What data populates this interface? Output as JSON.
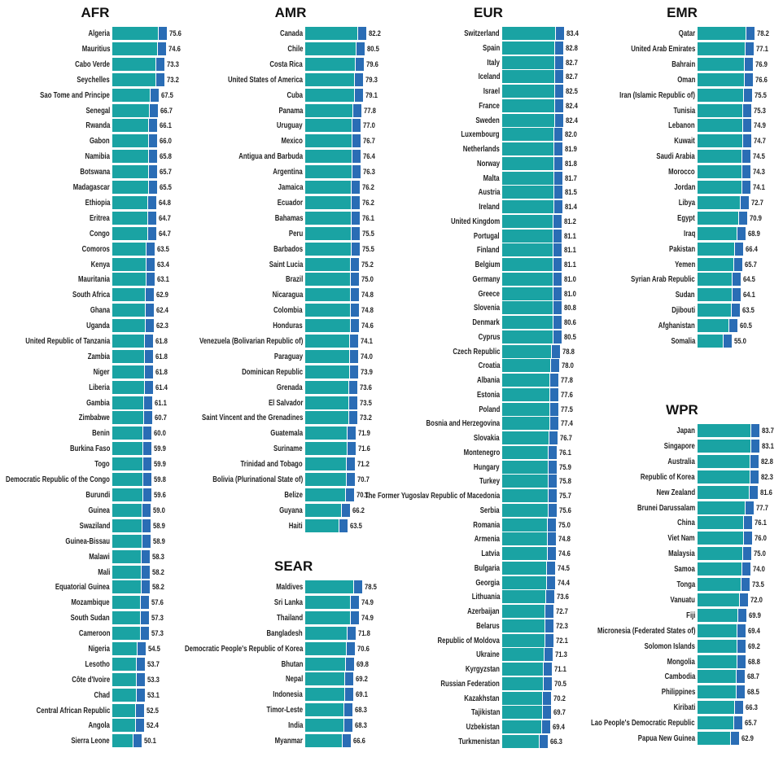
{
  "colors": {
    "bar_main": "#1aa3a3",
    "bar_accent": "#2a6db5",
    "bar_gap": "#ffffff"
  },
  "chart_data": [
    {
      "type": "bar",
      "title": "AFR",
      "categories": [
        "Algeria",
        "Mauritius",
        "Cabo Verde",
        "Seychelles",
        "Sao Tome and Principe",
        "Senegal",
        "Rwanda",
        "Gabon",
        "Namibia",
        "Botswana",
        "Madagascar",
        "Ethiopia",
        "Eritrea",
        "Congo",
        "Comoros",
        "Kenya",
        "Mauritania",
        "South Africa",
        "Ghana",
        "Uganda",
        "United Republic of Tanzania",
        "Zambia",
        "Niger",
        "Liberia",
        "Gambia",
        "Zimbabwe",
        "Benin",
        "Burkina Faso",
        "Togo",
        "Democratic Republic of the Congo",
        "Burundi",
        "Guinea",
        "Swaziland",
        "Guinea-Bissau",
        "Malawi",
        "Mali",
        "Equatorial Guinea",
        "Mozambique",
        "South Sudan",
        "Cameroon",
        "Nigeria",
        "Lesotho",
        "Côte d'Ivoire",
        "Chad",
        "Central African Republic",
        "Angola",
        "Sierra Leone"
      ],
      "values": [
        "75.6",
        "74.6",
        "73.3",
        "73.2",
        "67.5",
        "66.7",
        "66.1",
        "66.0",
        "65.8",
        "65.7",
        "65.5",
        "64.8",
        "64.7",
        "64.7",
        "63.5",
        "63.4",
        "63.1",
        "62.9",
        "62.4",
        "62.3",
        "61.8",
        "61.8",
        "61.8",
        "61.4",
        "61.1",
        "60.7",
        "60.0",
        "59.9",
        "59.9",
        "59.8",
        "59.6",
        "59.0",
        "58.9",
        "58.9",
        "58.3",
        "58.2",
        "58.2",
        "57.6",
        "57.3",
        "57.3",
        "54.5",
        "53.7",
        "53.3",
        "53.1",
        "52.5",
        "52.4",
        "50.1"
      ]
    },
    {
      "type": "bar",
      "title": "AMR",
      "categories": [
        "Canada",
        "Chile",
        "Costa Rica",
        "United States of America",
        "Cuba",
        "Panama",
        "Uruguay",
        "Mexico",
        "Antigua and Barbuda",
        "Argentina",
        "Jamaica",
        "Ecuador",
        "Bahamas",
        "Peru",
        "Barbados",
        "Saint Lucia",
        "Brazil",
        "Nicaragua",
        "Colombia",
        "Honduras",
        "Venezuela (Bolivarian Republic of)",
        "Paraguay",
        "Dominican Republic",
        "Grenada",
        "El Salvador",
        "Saint Vincent and the Grenadines",
        "Guatemala",
        "Suriname",
        "Trinidad and Tobago",
        "Bolivia (Plurinational State of)",
        "Belize",
        "Guyana",
        "Haiti"
      ],
      "values": [
        "82.2",
        "80.5",
        "79.6",
        "79.3",
        "79.1",
        "77.8",
        "77.0",
        "76.7",
        "76.4",
        "76.3",
        "76.2",
        "76.2",
        "76.1",
        "75.5",
        "75.5",
        "75.2",
        "75.0",
        "74.8",
        "74.8",
        "74.6",
        "74.1",
        "74.0",
        "73.9",
        "73.6",
        "73.5",
        "73.2",
        "71.9",
        "71.6",
        "71.2",
        "70.7",
        "70.1",
        "66.2",
        "63.5"
      ]
    },
    {
      "type": "bar",
      "title": "SEAR",
      "categories": [
        "Maldives",
        "Sri Lanka",
        "Thailand",
        "Bangladesh",
        "Democratic People's Republic of Korea",
        "Bhutan",
        "Nepal",
        "Indonesia",
        "Timor-Leste",
        "India",
        "Myanmar"
      ],
      "values": [
        "78.5",
        "74.9",
        "74.9",
        "71.8",
        "70.6",
        "69.8",
        "69.2",
        "69.1",
        "68.3",
        "68.3",
        "66.6"
      ]
    },
    {
      "type": "bar",
      "title": "EUR",
      "categories": [
        "Switzerland",
        "Spain",
        "Italy",
        "Iceland",
        "Israel",
        "France",
        "Sweden",
        "Luxembourg",
        "Netherlands",
        "Norway",
        "Malta",
        "Austria",
        "Ireland",
        "United Kingdom",
        "Portugal",
        "Finland",
        "Belgium",
        "Germany",
        "Greece",
        "Slovenia",
        "Denmark",
        "Cyprus",
        "Czech Republic",
        "Croatia",
        "Albania",
        "Estonia",
        "Poland",
        "Bosnia and Herzegovina",
        "Slovakia",
        "Montenegro",
        "Hungary",
        "Turkey",
        "The Former Yugoslav Republic of Macedonia",
        "Serbia",
        "Romania",
        "Armenia",
        "Latvia",
        "Bulgaria",
        "Georgia",
        "Lithuania",
        "Azerbaijan",
        "Belarus",
        "Republic of Moldova",
        "Ukraine",
        "Kyrgyzstan",
        "Russian Federation",
        "Kazakhstan",
        "Tajikistan",
        "Uzbekistan",
        "Turkmenistan"
      ],
      "values": [
        "83.4",
        "82.8",
        "82.7",
        "82.7",
        "82.5",
        "82.4",
        "82.4",
        "82.0",
        "81.9",
        "81.8",
        "81.7",
        "81.5",
        "81.4",
        "81.2",
        "81.1",
        "81.1",
        "81.1",
        "81.0",
        "81.0",
        "80.8",
        "80.6",
        "80.5",
        "78.8",
        "78.0",
        "77.8",
        "77.6",
        "77.5",
        "77.4",
        "76.7",
        "76.1",
        "75.9",
        "75.8",
        "75.7",
        "75.6",
        "75.0",
        "74.8",
        "74.6",
        "74.5",
        "74.4",
        "73.6",
        "72.7",
        "72.3",
        "72.1",
        "71.3",
        "71.1",
        "70.5",
        "70.2",
        "69.7",
        "69.4",
        "66.3"
      ]
    },
    {
      "type": "bar",
      "title": "EMR",
      "categories": [
        "Qatar",
        "United Arab Emirates",
        "Bahrain",
        "Oman",
        "Iran (Islamic Republic of)",
        "Tunisia",
        "Lebanon",
        "Kuwait",
        "Saudi Arabia",
        "Morocco",
        "Jordan",
        "Libya",
        "Egypt",
        "Iraq",
        "Pakistan",
        "Yemen",
        "Syrian Arab Republic",
        "Sudan",
        "Djibouti",
        "Afghanistan",
        "Somalia"
      ],
      "values": [
        "78.2",
        "77.1",
        "76.9",
        "76.6",
        "75.5",
        "75.3",
        "74.9",
        "74.7",
        "74.5",
        "74.3",
        "74.1",
        "72.7",
        "70.9",
        "68.9",
        "66.4",
        "65.7",
        "64.5",
        "64.1",
        "63.5",
        "60.5",
        "55.0"
      ]
    },
    {
      "type": "bar",
      "title": "WPR",
      "categories": [
        "Japan",
        "Singapore",
        "Australia",
        "Republic of Korea",
        "New Zealand",
        "Brunei Darussalam",
        "China",
        "Viet Nam",
        "Malaysia",
        "Samoa",
        "Tonga",
        "Vanuatu",
        "Fiji",
        "Micronesia (Federated States of)",
        "Solomon Islands",
        "Mongolia",
        "Cambodia",
        "Philippines",
        "Kiribati",
        "Lao People's Democratic Republic",
        "Papua New Guinea"
      ],
      "values": [
        "83.7",
        "83.1",
        "82.8",
        "82.3",
        "81.6",
        "77.7",
        "76.1",
        "76.0",
        "75.0",
        "74.0",
        "73.5",
        "72.0",
        "69.9",
        "69.4",
        "69.2",
        "68.8",
        "68.7",
        "68.5",
        "66.3",
        "65.7",
        "62.9"
      ]
    }
  ]
}
